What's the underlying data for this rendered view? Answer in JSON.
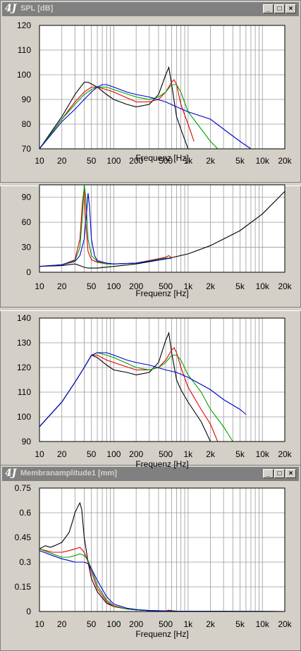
{
  "window1": {
    "title": "SPL [dB]",
    "logo": "4J"
  },
  "window2": {
    "title": "Membranamplitude1 [mm]",
    "logo": "4J"
  },
  "colors": {
    "black": "#000000",
    "red": "#e00000",
    "green": "#00a000",
    "blue": "#0000d0"
  },
  "icons": [
    "minimize-icon",
    "maximize-icon",
    "close-icon"
  ],
  "chart_data": [
    {
      "type": "line",
      "title": "SPL [dB]",
      "xlabel": "Frequenz [Hz]",
      "ylabel": "",
      "xscale": "log",
      "xlim": [
        10,
        20000
      ],
      "ylim": [
        70,
        120
      ],
      "yticks": [
        70,
        80,
        90,
        100,
        110,
        120
      ],
      "xtick_labels": [
        "10",
        "20",
        "50",
        "100",
        "200",
        "500",
        "1k",
        "2k",
        "5k",
        "10k",
        "20k"
      ],
      "grid": true,
      "series": [
        {
          "color": "black",
          "x": [
            10,
            20,
            30,
            40,
            45,
            60,
            80,
            100,
            150,
            200,
            300,
            400,
            500,
            550,
            600,
            700,
            800,
            1000
          ],
          "y": [
            70,
            83,
            92,
            97,
            97,
            95,
            92,
            90,
            88,
            87,
            88,
            92,
            100,
            103,
            96,
            83,
            78,
            70
          ]
        },
        {
          "color": "red",
          "x": [
            10,
            20,
            30,
            40,
            50,
            60,
            80,
            100,
            200,
            300,
            400,
            500,
            600,
            650,
            700,
            800,
            1000,
            1200
          ],
          "y": [
            70,
            82,
            89,
            93,
            95,
            95,
            94,
            93,
            89,
            89,
            90,
            93,
            97,
            98,
            96,
            88,
            80,
            73
          ]
        },
        {
          "color": "green",
          "x": [
            10,
            20,
            30,
            40,
            50,
            60,
            80,
            100,
            200,
            300,
            400,
            500,
            600,
            700,
            800,
            1000,
            1500,
            2000,
            2500
          ],
          "y": [
            70,
            82,
            88,
            92,
            94,
            95,
            95,
            94,
            91,
            90,
            91,
            93,
            96,
            96,
            93,
            85,
            78,
            73,
            70
          ]
        },
        {
          "color": "blue",
          "x": [
            10,
            20,
            30,
            40,
            50,
            60,
            70,
            80,
            100,
            150,
            200,
            300,
            500,
            700,
            1000,
            2000,
            3000,
            5000,
            7000
          ],
          "y": [
            70,
            81,
            86,
            90,
            93,
            95,
            96,
            96,
            95,
            93,
            92,
            91,
            89,
            87,
            85,
            82,
            78,
            73,
            70
          ]
        }
      ]
    },
    {
      "type": "line",
      "xlabel": "Frequenz [Hz]",
      "ylabel": "",
      "xscale": "log",
      "xlim": [
        10,
        20000
      ],
      "ylim": [
        0,
        105
      ],
      "yticks": [
        0,
        30,
        60,
        90
      ],
      "xtick_labels": [
        "10",
        "20",
        "50",
        "100",
        "200",
        "500",
        "1k",
        "2k",
        "5k",
        "10k",
        "20k"
      ],
      "grid": true,
      "series": [
        {
          "color": "black",
          "x": [
            10,
            20,
            30,
            35,
            40,
            45,
            50,
            60,
            100,
            200,
            500,
            1000,
            2000,
            5000,
            10000,
            20000
          ],
          "y": [
            7,
            8,
            10,
            8,
            6,
            5,
            5,
            5,
            7,
            10,
            16,
            22,
            32,
            50,
            70,
            97
          ]
        },
        {
          "color": "red",
          "x": [
            10,
            20,
            30,
            35,
            38,
            40,
            42,
            45,
            50,
            60,
            80,
            100,
            200,
            500,
            550,
            600
          ],
          "y": [
            7,
            9,
            15,
            40,
            85,
            100,
            60,
            25,
            15,
            12,
            10,
            10,
            11,
            18,
            20,
            17
          ]
        },
        {
          "color": "green",
          "x": [
            10,
            20,
            30,
            35,
            38,
            40,
            42,
            45,
            50,
            60,
            80,
            100,
            200,
            500,
            600
          ],
          "y": [
            7,
            9,
            14,
            30,
            70,
            105,
            90,
            40,
            20,
            13,
            10,
            10,
            11,
            17,
            17
          ]
        },
        {
          "color": "blue",
          "x": [
            10,
            20,
            30,
            35,
            40,
            43,
            45,
            47,
            50,
            55,
            60,
            80,
            100,
            200,
            500,
            600
          ],
          "y": [
            7,
            9,
            13,
            20,
            40,
            70,
            95,
            80,
            40,
            20,
            14,
            11,
            10,
            11,
            16,
            17
          ]
        }
      ]
    },
    {
      "type": "line",
      "xlabel": "Frequenz [Hz]",
      "ylabel": "",
      "xscale": "log",
      "xlim": [
        10,
        20000
      ],
      "ylim": [
        90,
        140
      ],
      "yticks": [
        90,
        100,
        110,
        120,
        130,
        140
      ],
      "xtick_labels": [
        "10",
        "20",
        "50",
        "100",
        "200",
        "500",
        "1k",
        "2k",
        "5k",
        "10k",
        "20k"
      ],
      "grid": true,
      "series": [
        {
          "color": "black",
          "x": [
            10,
            20,
            30,
            40,
            50,
            60,
            80,
            100,
            150,
            200,
            300,
            400,
            500,
            550,
            600,
            700,
            800,
            1000,
            1500,
            2000
          ],
          "y": [
            96,
            106,
            114,
            120,
            125,
            124,
            121,
            119,
            118,
            117,
            118,
            122,
            131,
            134,
            126,
            115,
            111,
            106,
            98,
            90
          ]
        },
        {
          "color": "red",
          "x": [
            10,
            20,
            30,
            40,
            50,
            60,
            80,
            100,
            200,
            300,
            400,
            500,
            600,
            650,
            700,
            800,
            1000,
            1500,
            2000,
            2500
          ],
          "y": [
            96,
            106,
            114,
            120,
            125,
            125,
            123,
            122,
            119,
            119,
            120,
            123,
            127,
            128,
            126,
            120,
            112,
            103,
            97,
            90
          ]
        },
        {
          "color": "green",
          "x": [
            10,
            20,
            30,
            40,
            50,
            60,
            80,
            100,
            200,
            300,
            400,
            500,
            600,
            700,
            800,
            1000,
            1500,
            2000,
            3000,
            4000
          ],
          "y": [
            96,
            106,
            114,
            120,
            125,
            126,
            125,
            124,
            120,
            119,
            120,
            122,
            125,
            125,
            123,
            117,
            110,
            103,
            96,
            90
          ]
        },
        {
          "color": "blue",
          "x": [
            10,
            20,
            30,
            40,
            50,
            60,
            70,
            80,
            100,
            150,
            200,
            300,
            500,
            700,
            1000,
            2000,
            3000,
            5000,
            6000
          ],
          "y": [
            96,
            106,
            114,
            120,
            125,
            126,
            126,
            126,
            125,
            123,
            122,
            121,
            119,
            118,
            116,
            111,
            107,
            103,
            101
          ]
        }
      ]
    },
    {
      "type": "line",
      "title": "Membranamplitude1 [mm]",
      "xlabel": "Frequenz [Hz]",
      "ylabel": "",
      "xscale": "log",
      "xlim": [
        10,
        20000
      ],
      "ylim": [
        0,
        0.75
      ],
      "yticks": [
        0,
        0.15,
        0.3,
        0.45,
        0.6,
        0.75
      ],
      "ytick_labels": [
        "0",
        "0.15",
        "0.3",
        "0.45",
        "0.6",
        "0.75"
      ],
      "xtick_labels": [
        "10",
        "20",
        "50",
        "100",
        "200",
        "500",
        "1k",
        "2k",
        "5k",
        "10k",
        "20k"
      ],
      "grid": true,
      "series": [
        {
          "color": "black",
          "x": [
            10,
            12,
            14,
            16,
            20,
            25,
            28,
            30,
            33,
            35,
            37,
            40,
            45,
            50,
            60,
            80,
            100,
            150,
            200,
            300,
            500,
            600,
            700,
            20000
          ],
          "y": [
            0.38,
            0.4,
            0.39,
            0.4,
            0.42,
            0.48,
            0.55,
            0.6,
            0.64,
            0.66,
            0.62,
            0.45,
            0.3,
            0.2,
            0.12,
            0.05,
            0.03,
            0.015,
            0.01,
            0.005,
            0.003,
            0.005,
            0.002,
            0
          ]
        },
        {
          "color": "red",
          "x": [
            10,
            15,
            20,
            25,
            30,
            35,
            40,
            45,
            50,
            60,
            80,
            100,
            150,
            200,
            300,
            500,
            550,
            600,
            700,
            20000
          ],
          "y": [
            0.38,
            0.36,
            0.36,
            0.37,
            0.38,
            0.39,
            0.36,
            0.3,
            0.24,
            0.14,
            0.06,
            0.03,
            0.015,
            0.01,
            0.005,
            0.004,
            0.008,
            0.005,
            0.002,
            0
          ]
        },
        {
          "color": "green",
          "x": [
            10,
            15,
            20,
            25,
            30,
            35,
            40,
            45,
            50,
            60,
            80,
            100,
            150,
            200,
            300,
            500,
            600,
            700,
            20000
          ],
          "y": [
            0.38,
            0.35,
            0.33,
            0.33,
            0.34,
            0.35,
            0.34,
            0.31,
            0.26,
            0.16,
            0.07,
            0.035,
            0.015,
            0.01,
            0.005,
            0.004,
            0.004,
            0.002,
            0
          ]
        },
        {
          "color": "blue",
          "x": [
            10,
            15,
            20,
            25,
            30,
            35,
            40,
            45,
            50,
            60,
            80,
            100,
            150,
            200,
            300,
            500,
            700,
            20000
          ],
          "y": [
            0.37,
            0.34,
            0.32,
            0.31,
            0.3,
            0.3,
            0.3,
            0.29,
            0.26,
            0.19,
            0.09,
            0.045,
            0.02,
            0.012,
            0.006,
            0.003,
            0.002,
            0
          ]
        }
      ]
    }
  ]
}
